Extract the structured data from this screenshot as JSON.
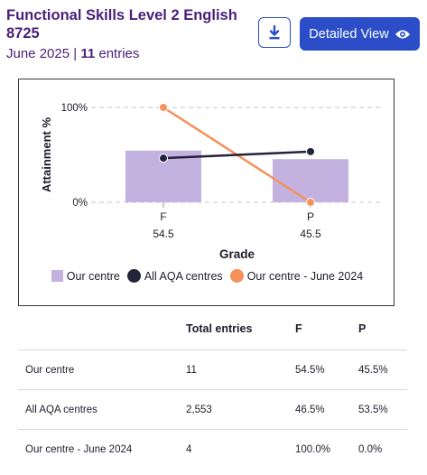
{
  "header": {
    "title": "Functional Skills Level 2 English 8725",
    "series": "June 2025",
    "separator": "|",
    "entries_count": "11",
    "entries_label": "entries",
    "download_icon": "download-icon",
    "detail_button_label": "Detailed View",
    "detail_icon": "eye-icon"
  },
  "colors": {
    "primary": "#2b4ec8",
    "title": "#4a1f7a",
    "bar": "#c3b2e0",
    "aqa_line": "#23233a",
    "june2024_line": "#f5915a"
  },
  "chart_data": {
    "type": "bar",
    "categories": [
      "F",
      "P"
    ],
    "category_values": [
      "54.5",
      "45.5"
    ],
    "xlabel": "Grade",
    "ylabel": "Attainment %",
    "ylim": [
      0,
      100
    ],
    "yticks": [
      "0%",
      "100%"
    ],
    "grid": true,
    "legend_position": "bottom",
    "series": [
      {
        "name": "Our centre",
        "kind": "bar",
        "values": [
          54.5,
          45.5
        ]
      },
      {
        "name": "All AQA centres",
        "kind": "line",
        "values": [
          46.5,
          53.5
        ]
      },
      {
        "name": "Our centre - June 2024",
        "kind": "line",
        "values": [
          100,
          0
        ]
      }
    ]
  },
  "table": {
    "headers": [
      "",
      "Total entries",
      "F",
      "P"
    ],
    "rows": [
      [
        "Our centre",
        "11",
        "54.5%",
        "45.5%"
      ],
      [
        "All AQA centres",
        "2,553",
        "46.5%",
        "53.5%"
      ],
      [
        "Our centre - June 2024",
        "4",
        "100.0%",
        "0.0%"
      ]
    ]
  }
}
